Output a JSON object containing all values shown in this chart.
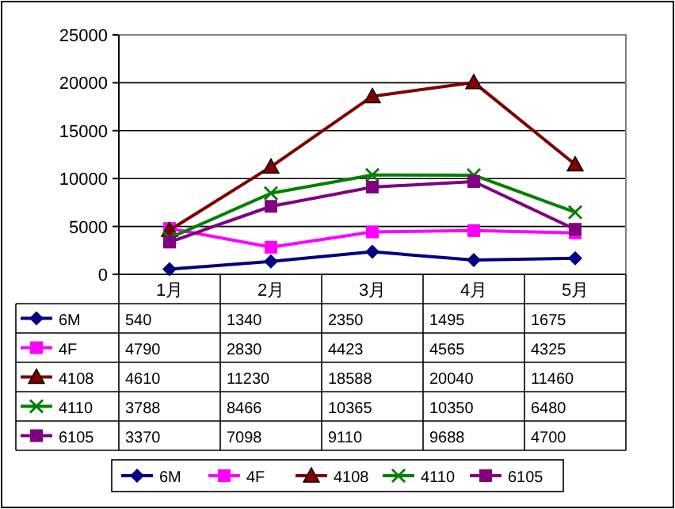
{
  "chart_data": {
    "type": "line",
    "categories": [
      "1月",
      "2月",
      "3月",
      "4月",
      "5月"
    ],
    "series": [
      {
        "name": "6M",
        "color": "#000080",
        "marker": "diamond",
        "values": [
          540,
          1340,
          2350,
          1495,
          1675
        ]
      },
      {
        "name": "4F",
        "color": "#ff00ff",
        "marker": "square",
        "values": [
          4790,
          2830,
          4423,
          4565,
          4325
        ]
      },
      {
        "name": "4108",
        "color": "#800000",
        "marker": "triangle",
        "values": [
          4610,
          11230,
          18588,
          20040,
          11460
        ]
      },
      {
        "name": "4110",
        "color": "#008000",
        "marker": "cross",
        "values": [
          3788,
          8466,
          10365,
          10350,
          6480
        ]
      },
      {
        "name": "6105",
        "color": "#800080",
        "marker": "square",
        "values": [
          3370,
          7098,
          9110,
          9688,
          4700
        ]
      }
    ],
    "ylim": [
      0,
      25000
    ],
    "yticks": [
      0,
      5000,
      10000,
      15000,
      20000,
      25000
    ],
    "grid": "y",
    "data_labels": true,
    "legend": "bottom",
    "line_style": "solid"
  }
}
